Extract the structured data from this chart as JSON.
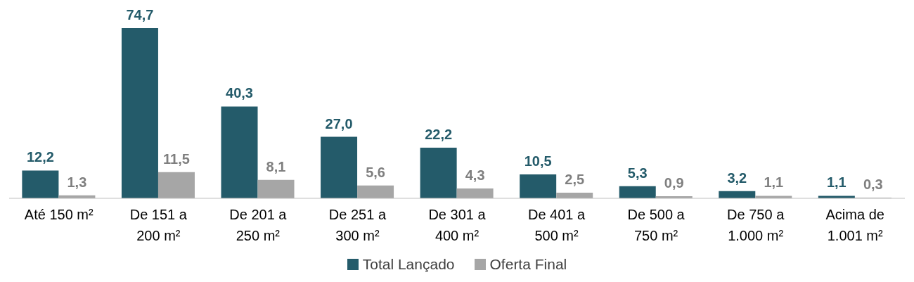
{
  "chart_data": {
    "type": "bar",
    "categories": [
      "Até 150 m²",
      "De 151 a 200 m²",
      "De 201 a 250 m²",
      "De 251 a 300 m²",
      "De 301 a 400 m²",
      "De 401 a 500 m²",
      "De 500 a 750 m²",
      "De 750 a 1.000 m²",
      "Acima de 1.001 m²"
    ],
    "series": [
      {
        "name": "Total Lançado",
        "color": "#245b6a",
        "values": [
          12.2,
          74.7,
          40.3,
          27.0,
          22.2,
          10.5,
          5.3,
          3.2,
          1.1
        ],
        "value_labels": [
          "12,2",
          "74,7",
          "40,3",
          "27,0",
          "22,2",
          "10,5",
          "5,3",
          "3,2",
          "1,1"
        ]
      },
      {
        "name": "Oferta Final",
        "color": "#a6a6a6",
        "values": [
          1.3,
          11.5,
          8.1,
          5.6,
          4.3,
          2.5,
          0.9,
          1.1,
          0.3
        ],
        "value_labels": [
          "1,3",
          "11,5",
          "8,1",
          "5,6",
          "4,3",
          "2,5",
          "0,9",
          "1,1",
          "0,3"
        ]
      }
    ],
    "legend": "bottom"
  }
}
